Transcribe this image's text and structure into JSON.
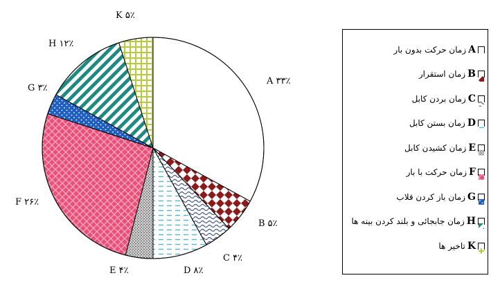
{
  "chart_data": {
    "type": "pie",
    "slices": [
      {
        "key": "A",
        "value": 33,
        "label": "A ۳۳٪",
        "legend": "زمان حرکت بدون بار",
        "color": "#ffffff",
        "pattern": "none"
      },
      {
        "key": "B",
        "value": 5,
        "label": "B ۵٪",
        "legend": "زمان استقرار",
        "color": "#8b1a1a",
        "pattern": "checker"
      },
      {
        "key": "C",
        "value": 4,
        "label": "C ۴٪",
        "legend": "زمان بردن کابل",
        "color": "#4a5a8a",
        "pattern": "wave"
      },
      {
        "key": "D",
        "value": 8,
        "label": "D ۸٪",
        "legend": "زمان بستن کابل",
        "color": "#4fb8d0",
        "pattern": "dash"
      },
      {
        "key": "E",
        "value": 4,
        "label": "E ۴٪",
        "legend": "زمان کشیدن کابل",
        "color": "#9a9a9a",
        "pattern": "stipple"
      },
      {
        "key": "F",
        "value": 26,
        "label": "F ۲۶٪",
        "legend": "زمان حرکت با بار",
        "color": "#e8507a",
        "pattern": "weave"
      },
      {
        "key": "G",
        "value": 3,
        "label": "G ۳٪",
        "legend": "زمان باز کردن قلاب",
        "color": "#1f5fbf",
        "pattern": "dots"
      },
      {
        "key": "H",
        "value": 12,
        "label": "H ۱۲٪",
        "legend": "زمان جابجائی و بلند کردن بینه ها",
        "color": "#1f8a80",
        "pattern": "diagonal"
      },
      {
        "key": "K",
        "value": 5,
        "label": "K ۵٪",
        "legend": "تاخیر ها",
        "color": "#b5cc3a",
        "pattern": "grid"
      }
    ],
    "legend_position": "right"
  }
}
